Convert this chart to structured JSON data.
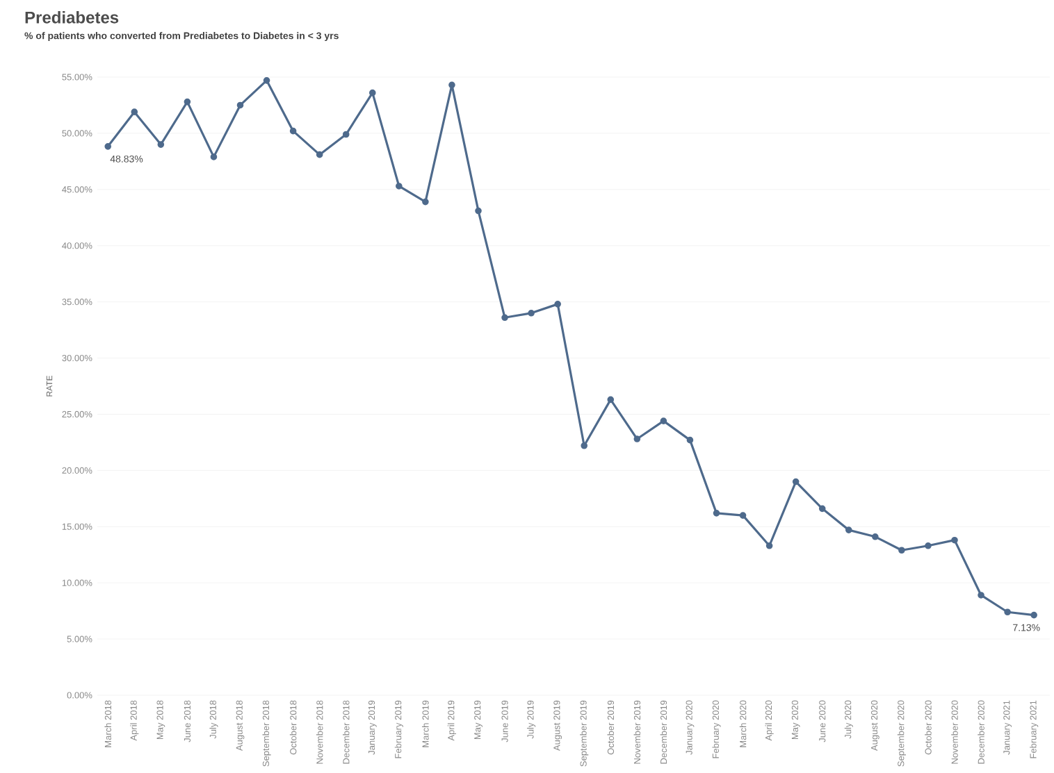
{
  "chart_data": {
    "type": "line",
    "title": "Prediabetes",
    "subtitle": "% of patients who converted from Prediabetes to Diabetes in < 3 yrs",
    "ylabel": "RATE",
    "categories": [
      "March 2018",
      "April 2018",
      "May 2018",
      "June 2018",
      "July 2018",
      "August 2018",
      "September 2018",
      "October 2018",
      "November 2018",
      "December 2018",
      "January 2019",
      "February 2019",
      "March 2019",
      "April 2019",
      "May 2019",
      "June 2019",
      "July 2019",
      "August 2019",
      "September 2019",
      "October 2019",
      "November 2019",
      "December 2019",
      "January 2020",
      "February 2020",
      "March 2020",
      "April 2020",
      "May 2020",
      "June 2020",
      "July 2020",
      "August 2020",
      "September 2020",
      "October 2020",
      "November 2020",
      "December 2020",
      "January 2021",
      "February 2021"
    ],
    "series": [
      {
        "color": "#4e6a8c",
        "values": [
          48.83,
          51.9,
          49.0,
          52.8,
          47.9,
          52.5,
          54.7,
          50.2,
          48.1,
          49.9,
          53.6,
          45.3,
          43.9,
          54.3,
          43.1,
          33.6,
          34.0,
          34.8,
          22.2,
          26.3,
          22.8,
          24.4,
          22.7,
          16.2,
          16.0,
          13.3,
          19.0,
          16.6,
          14.7,
          14.1,
          12.9,
          13.3,
          13.8,
          8.9,
          7.4,
          7.13
        ],
        "value_labels": [
          "48.83%",
          null,
          null,
          null,
          null,
          null,
          null,
          null,
          null,
          null,
          null,
          null,
          null,
          null,
          null,
          null,
          null,
          null,
          null,
          null,
          null,
          null,
          null,
          null,
          null,
          null,
          null,
          null,
          null,
          null,
          null,
          null,
          null,
          null,
          null,
          "7.13%"
        ]
      }
    ],
    "ylim": [
      0,
      55
    ],
    "yticks": [
      {
        "value": 0,
        "label": "0.00%"
      },
      {
        "value": 5,
        "label": "5.00%"
      },
      {
        "value": 10,
        "label": "10.00%"
      },
      {
        "value": 15,
        "label": "15.00%"
      },
      {
        "value": 20,
        "label": "20.00%"
      },
      {
        "value": 25,
        "label": "25.00%"
      },
      {
        "value": 30,
        "label": "30.00%"
      },
      {
        "value": 35,
        "label": "35.00%"
      },
      {
        "value": 40,
        "label": "40.00%"
      },
      {
        "value": 45,
        "label": "45.00%"
      },
      {
        "value": 50,
        "label": "50.00%"
      },
      {
        "value": 55,
        "label": "55.00%"
      }
    ],
    "grid": "y",
    "marker": "circle",
    "line_style": "solid"
  }
}
